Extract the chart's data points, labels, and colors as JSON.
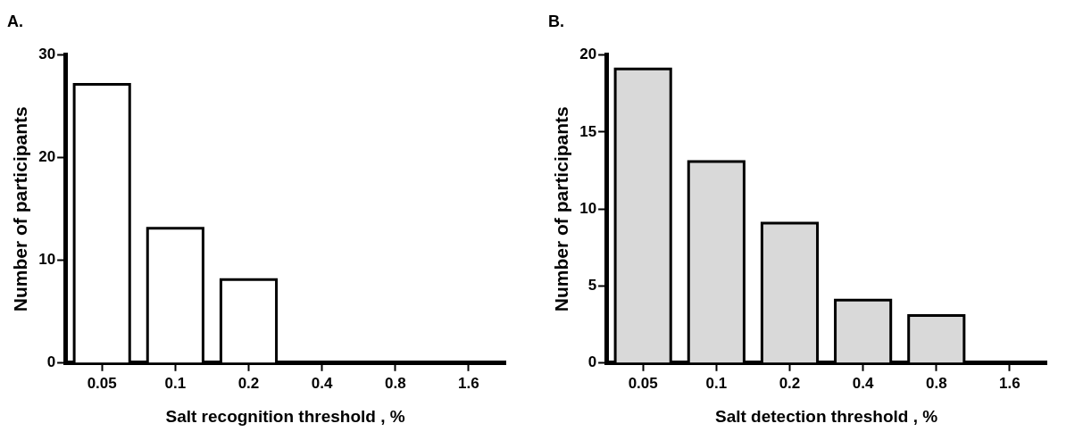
{
  "chart_data": [
    {
      "type": "bar",
      "title": "A.",
      "xlabel": "Salt recognition threshold , %",
      "ylabel": "Number of participants",
      "categories": [
        "0.05",
        "0.1",
        "0.2",
        "0.4",
        "0.8",
        "1.6"
      ],
      "values": [
        27,
        13,
        8,
        0,
        0,
        0
      ],
      "color": "#ffffff",
      "ylim": [
        0,
        30
      ],
      "yticks": [
        0,
        10,
        20,
        30
      ],
      "grid": false,
      "legend": false
    },
    {
      "type": "bar",
      "title": "B.",
      "xlabel": "Salt detection threshold , %",
      "ylabel": "Number of participants",
      "categories": [
        "0.05",
        "0.1",
        "0.2",
        "0.4",
        "0.8",
        "1.6"
      ],
      "values": [
        19,
        13,
        9,
        4,
        3,
        0
      ],
      "color": "#d9d9d9",
      "ylim": [
        0,
        20
      ],
      "yticks": [
        0,
        5,
        10,
        15,
        20
      ],
      "grid": false,
      "legend": false
    }
  ]
}
